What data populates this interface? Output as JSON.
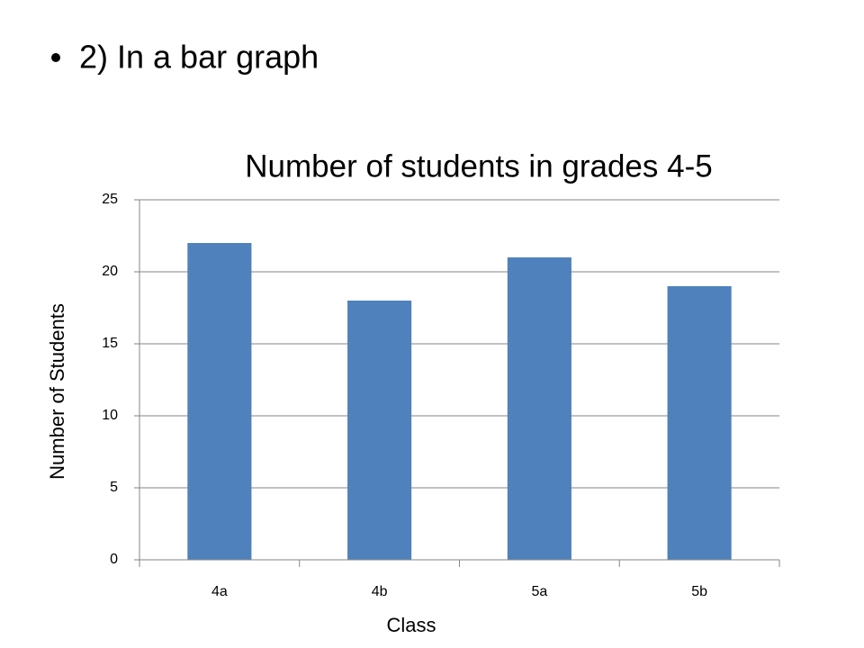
{
  "bullet": "2) In a bar graph",
  "chart_data": {
    "type": "bar",
    "title": "Number of students in grades 4-5",
    "x_label": "Class",
    "y_label": "Number of Students",
    "categories": [
      "4a",
      "4b",
      "5a",
      "5b"
    ],
    "values": [
      22,
      18,
      21,
      19
    ],
    "color": "#4f81bd",
    "ylim": [
      0,
      25
    ],
    "yticks": [
      0,
      5,
      10,
      15,
      20,
      25
    ],
    "grid": true
  }
}
